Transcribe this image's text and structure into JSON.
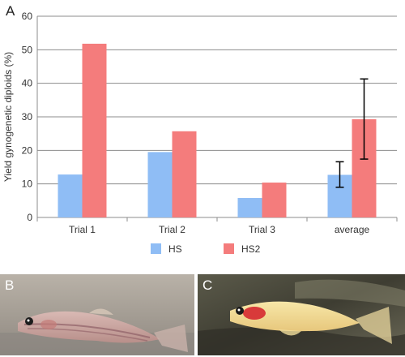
{
  "panel_labels": {
    "chart": "A",
    "photo_left": "B",
    "photo_right": "C"
  },
  "chart_data": {
    "type": "bar",
    "categories": [
      "Trial 1",
      "Trial 2",
      "Trial 3",
      "average"
    ],
    "series": [
      {
        "name": "HS",
        "values": [
          12.8,
          19.5,
          5.8,
          12.7
        ],
        "color": "#8fbdf5"
      },
      {
        "name": "HS2",
        "values": [
          51.8,
          25.7,
          10.4,
          29.3
        ],
        "color": "#f47c7c"
      }
    ],
    "error_bars": {
      "category": "average",
      "HS": {
        "low": 9.0,
        "high": 16.6
      },
      "HS2": {
        "low": 17.4,
        "high": 41.3
      }
    },
    "xlabel": "",
    "ylabel": "Yield gynogenetic diploids (%)",
    "ylim": [
      0,
      60
    ],
    "yticks": [
      0,
      10,
      20,
      30,
      40,
      50,
      60
    ],
    "grid": true,
    "legend_position": "bottom"
  }
}
